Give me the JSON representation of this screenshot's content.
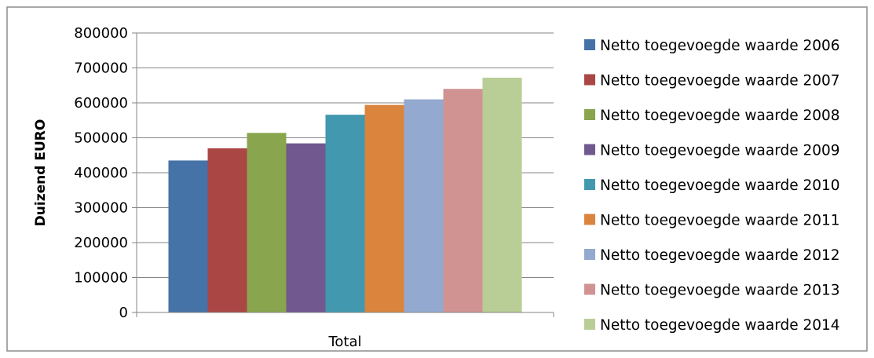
{
  "chart_data": {
    "type": "bar",
    "categories": [
      "Total"
    ],
    "series": [
      {
        "name": "Netto toegevoegde waarde 2006",
        "values": [
          435000
        ],
        "color": "#4572A7"
      },
      {
        "name": "Netto toegevoegde waarde 2007",
        "values": [
          470000
        ],
        "color": "#AA4643"
      },
      {
        "name": "Netto toegevoegde waarde 2008",
        "values": [
          514000
        ],
        "color": "#89A54E"
      },
      {
        "name": "Netto toegevoegde waarde 2009",
        "values": [
          484000
        ],
        "color": "#71588F"
      },
      {
        "name": "Netto toegevoegde waarde 2010",
        "values": [
          566000
        ],
        "color": "#4198AF"
      },
      {
        "name": "Netto toegevoegde waarde 2011",
        "values": [
          594000
        ],
        "color": "#DB843D"
      },
      {
        "name": "Netto toegevoegde waarde 2012",
        "values": [
          610000
        ],
        "color": "#93A9CF"
      },
      {
        "name": "Netto toegevoegde waarde 2013",
        "values": [
          640000
        ],
        "color": "#D19392"
      },
      {
        "name": "Netto toegevoegde waarde 2014",
        "values": [
          672000
        ],
        "color": "#B9CD96"
      }
    ],
    "title": "",
    "xlabel": "",
    "ylabel": "Duizend EURO",
    "ylim": [
      0,
      800000
    ],
    "yticks": [
      "0",
      "100000",
      "200000",
      "300000",
      "400000",
      "500000",
      "600000",
      "700000",
      "800000"
    ],
    "grid": true,
    "legend_position": "right"
  }
}
